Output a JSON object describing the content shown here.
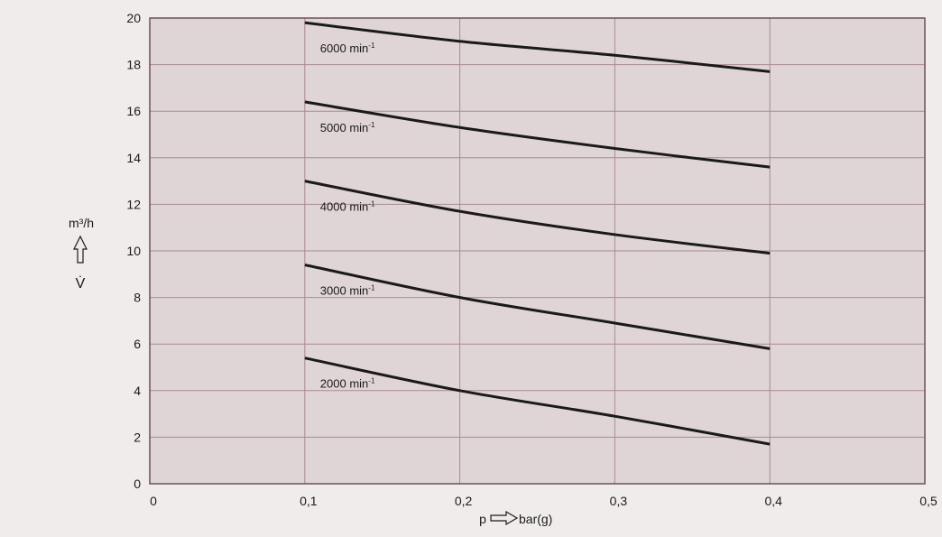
{
  "chart_data": {
    "type": "line",
    "title": "",
    "xlabel": {
      "symbol": "p",
      "unit": "bar(g)"
    },
    "ylabel": {
      "symbol": "V̇",
      "unit": "m³/h"
    },
    "xlim": [
      0,
      0.5
    ],
    "ylim": [
      0,
      20
    ],
    "x_ticks": [
      0,
      0.1,
      0.2,
      0.3,
      0.4,
      0.5
    ],
    "x_tick_labels": [
      "0",
      "0,1",
      "0,2",
      "0,3",
      "0,4",
      "0,5"
    ],
    "y_ticks": [
      0,
      2,
      4,
      6,
      8,
      10,
      12,
      14,
      16,
      18,
      20
    ],
    "y_tick_labels": [
      "0",
      "2",
      "4",
      "6",
      "8",
      "10",
      "12",
      "14",
      "16",
      "18",
      "20"
    ],
    "grid": true,
    "colors": {
      "plot_background": "#dfd5d7",
      "page_background": "#f1ecec",
      "grid": "#a88a92",
      "line": "#1a1a1a"
    },
    "series": [
      {
        "name": "6000 min",
        "label_base": "6000 min",
        "label_sup": "-1",
        "x": [
          0.1,
          0.2,
          0.3,
          0.4
        ],
        "y": [
          19.8,
          19.0,
          18.4,
          17.7
        ]
      },
      {
        "name": "5000 min",
        "label_base": "5000 min",
        "label_sup": "-1",
        "x": [
          0.1,
          0.2,
          0.3,
          0.4
        ],
        "y": [
          16.4,
          15.3,
          14.4,
          13.6
        ]
      },
      {
        "name": "4000 min",
        "label_base": "4000 min",
        "label_sup": "-1",
        "x": [
          0.1,
          0.2,
          0.3,
          0.4
        ],
        "y": [
          13.0,
          11.7,
          10.7,
          9.9
        ]
      },
      {
        "name": "3000 min",
        "label_base": "3000 min",
        "label_sup": "-1",
        "x": [
          0.1,
          0.2,
          0.3,
          0.4
        ],
        "y": [
          9.4,
          8.0,
          6.9,
          5.8
        ]
      },
      {
        "name": "2000 min",
        "label_base": "2000 min",
        "label_sup": "-1",
        "x": [
          0.1,
          0.2,
          0.3,
          0.4
        ],
        "y": [
          5.4,
          4.0,
          2.9,
          1.7
        ]
      }
    ]
  }
}
